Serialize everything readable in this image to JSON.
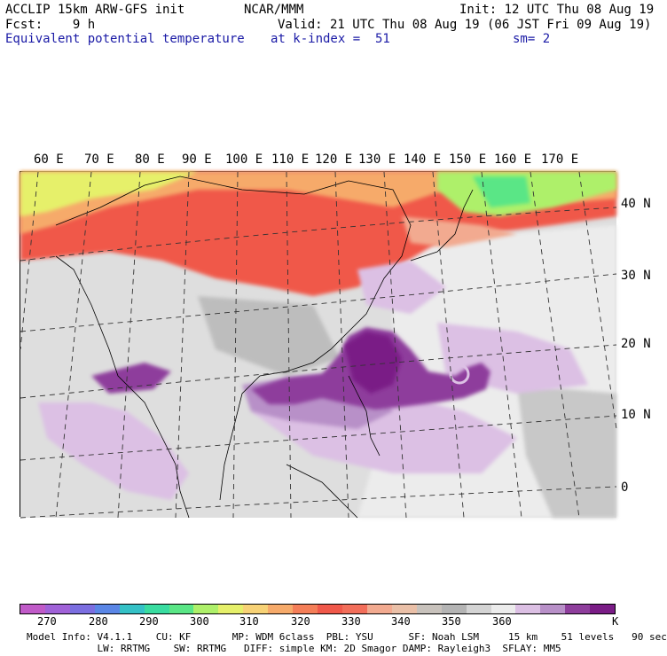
{
  "header": {
    "line1_left": "ACCLIP 15km ARW-GFS init",
    "line1_center": "NCAR/MMM",
    "line1_right": "Init: 12 UTC Thu 08 Aug 19",
    "line2_left": "Fcst:    9 h",
    "line2_right": "Valid: 21 UTC Thu 08 Aug 19 (06 JST Fri 09 Aug 19)",
    "line3_left": "Equivalent potential temperature",
    "line3_center": "at k-index =  51",
    "line3_right": "sm= 2"
  },
  "map": {
    "lon_labels": [
      "60 E",
      "70 E",
      "80 E",
      "90 E",
      "100 E",
      "110 E",
      "120 E",
      "130 E",
      "140 E",
      "150 E",
      "160 E",
      "170 E"
    ],
    "lat_labels": [
      "40 N",
      "30 N",
      "20 N",
      "10 N",
      "0"
    ]
  },
  "colorbar": {
    "colors": [
      "#c05ac8",
      "#a062d8",
      "#7b6ee0",
      "#5a86e6",
      "#34c1c6",
      "#39dca0",
      "#5ae686",
      "#aef06a",
      "#e6f06a",
      "#f7d276",
      "#f6aa6a",
      "#f47e58",
      "#f0584a",
      "#f26e5a",
      "#f2aa90",
      "#eac0a8",
      "#c8c2bc",
      "#b4b4b4",
      "#d4d4d4",
      "#ececec",
      "#dcc0e4",
      "#b890c8",
      "#8e3e9c",
      "#7a1c86"
    ],
    "ticks": [
      "270",
      "280",
      "290",
      "300",
      "310",
      "320",
      "330",
      "340",
      "350",
      "360"
    ],
    "unit": "K"
  },
  "footer": {
    "line1": "Model Info: V4.1.1    CU: KF       MP: WDM 6class  PBL: YSU      SF: Noah LSM     15 km    51 levels   90 sec",
    "line2": "            LW: RRTMG    SW: RRTMG   DIFF: simple KM: 2D Smagor DAMP: Rayleigh3  SFLAY: MM5"
  }
}
